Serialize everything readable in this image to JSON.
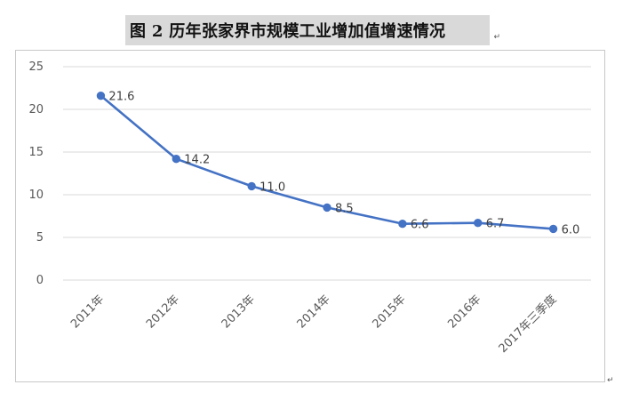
{
  "document": {
    "title": "图 2  历年张家界市规模工业增加值增速情况",
    "return_mark": "↵"
  },
  "chart_data": {
    "type": "line",
    "title": "图 2  历年张家界市规模工业增加值增速情况",
    "xlabel": "",
    "ylabel": "",
    "categories": [
      "2011年",
      "2012年",
      "2013年",
      "2014年",
      "2015年",
      "2016年",
      "2017年三季度"
    ],
    "series": [
      {
        "values": [
          21.6,
          14.2,
          11.0,
          8.5,
          6.6,
          6.7,
          6.0
        ],
        "labels": [
          "21.6",
          "14.2",
          "11.0",
          "8.5",
          "6.6",
          "6.7",
          "6.0"
        ],
        "color": "#4472c4"
      }
    ],
    "ylim": [
      0,
      25
    ],
    "yticks": [
      0,
      5,
      10,
      15,
      20,
      25
    ],
    "grid": true,
    "legend": "none",
    "colors": {
      "line": "#4472c4",
      "grid": "#d9d9d9",
      "tick_text": "#595959",
      "title_bg": "#d9d9d9"
    }
  }
}
